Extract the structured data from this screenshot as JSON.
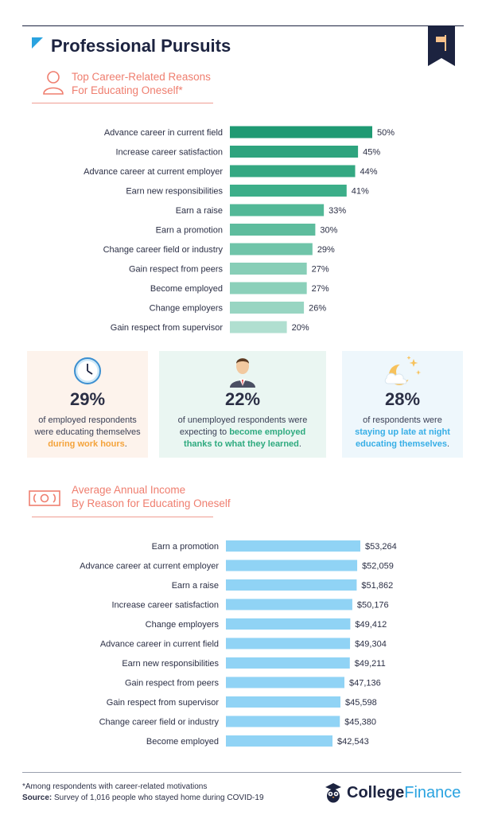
{
  "header": {
    "title": "Professional Pursuits"
  },
  "section1": {
    "title_line1": "Top Career-Related Reasons",
    "title_line2": "For Educating Oneself*"
  },
  "section2": {
    "title_line1": "Average Annual Income",
    "title_line2": "By Reason for Educating Oneself"
  },
  "cards": [
    {
      "value": "29%",
      "line1": "of employed respondents",
      "line2": "were educating themselves",
      "highlight": "during work hours",
      "suffix": ".",
      "bg": "#fdf3ec",
      "accent": "#f4a33b"
    },
    {
      "value": "22%",
      "line1": "of unemployed respondents were",
      "line2": "expecting to",
      "highlight_a": "become employed",
      "highlight_b": "thanks to what they learned",
      "suffix": ".",
      "bg": "#eaf6f2",
      "accent": "#2eaa7f"
    },
    {
      "value": "28%",
      "line1": "of respondents were",
      "highlight_a": "staying up late at night",
      "highlight_b": "educating themselves",
      "suffix": ".",
      "bg": "#eef7fc",
      "accent": "#37aee6"
    }
  ],
  "footer": {
    "note": "*Among respondents with career-related motivations",
    "source_label": "Source:",
    "source_text": "Survey of 1,016 people who stayed home during COVID-19",
    "logo_part1": "College",
    "logo_part2": "Finance"
  },
  "chart_data": [
    {
      "type": "bar",
      "orientation": "horizontal",
      "categories": [
        "Advance career in current field",
        "Increase career satisfaction",
        "Advance career at current employer",
        "Earn new responsibilities",
        "Earn a raise",
        "Earn a promotion",
        "Change career field or industry",
        "Gain respect from peers",
        "Become employed",
        "Change employers",
        "Gain respect from supervisor"
      ],
      "values": [
        50,
        45,
        44,
        41,
        33,
        30,
        29,
        27,
        27,
        26,
        20
      ],
      "labels": [
        "50%",
        "45%",
        "44%",
        "41%",
        "33%",
        "30%",
        "29%",
        "27%",
        "27%",
        "26%",
        "20%"
      ],
      "colors": [
        "#1f9a73",
        "#2ea47e",
        "#34a882",
        "#3cae89",
        "#52b897",
        "#5dbc9d",
        "#6fc4a9",
        "#87ceb7",
        "#8bd0ba",
        "#98d5c2",
        "#b0dfd0"
      ],
      "xlim": [
        0,
        50
      ],
      "grid": false
    },
    {
      "type": "bar",
      "orientation": "horizontal",
      "categories": [
        "Earn a promotion",
        "Advance career at current employer",
        "Earn a raise",
        "Increase career satisfaction",
        "Change employers",
        "Advance career in current field",
        "Earn new responsibilities",
        "Gain respect from peers",
        "Gain respect from supervisor",
        "Change career field or industry",
        "Become employed"
      ],
      "values": [
        53264,
        52059,
        51862,
        50176,
        49412,
        49304,
        49211,
        47136,
        45598,
        45380,
        42543
      ],
      "labels": [
        "$53,264",
        "$52,059",
        "$51,862",
        "$50,176",
        "$49,412",
        "$49,304",
        "$49,211",
        "$47,136",
        "$45,598",
        "$45,380",
        "$42,543"
      ],
      "color": "#90d3f5",
      "grid": false
    }
  ]
}
